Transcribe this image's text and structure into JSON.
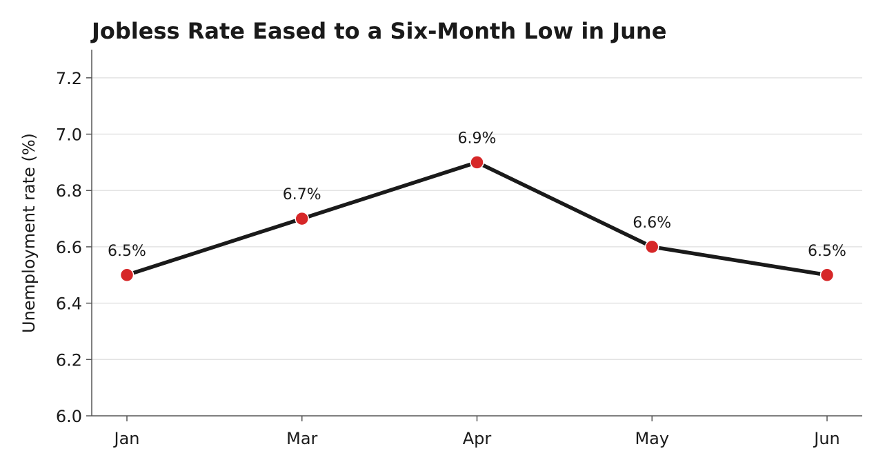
{
  "chart_data": {
    "type": "line",
    "title": "Jobless Rate Eased to a Six-Month Low in June",
    "xlabel": "",
    "ylabel": "Unemployment rate (%)",
    "categories": [
      "Jan",
      "Mar",
      "Apr",
      "May",
      "Jun"
    ],
    "series": [
      {
        "values": [
          6.5,
          6.7,
          6.9,
          6.6,
          6.5
        ]
      }
    ],
    "data_labels": [
      "6.5%",
      "6.7%",
      "6.9%",
      "6.6%",
      "6.5%"
    ],
    "ylim": [
      6.0,
      7.3
    ],
    "yticks": [
      6.0,
      6.2,
      6.4,
      6.6,
      6.8,
      7.0,
      7.2
    ],
    "ytick_labels": [
      "6.0",
      "6.2",
      "6.4",
      "6.6",
      "6.8",
      "7.0",
      "7.2"
    ],
    "grid": "horizontal",
    "colors": {
      "line": "#1a1a1a",
      "marker": "#d62728",
      "grid": "#e3e3e3",
      "axis": "#555555"
    }
  }
}
